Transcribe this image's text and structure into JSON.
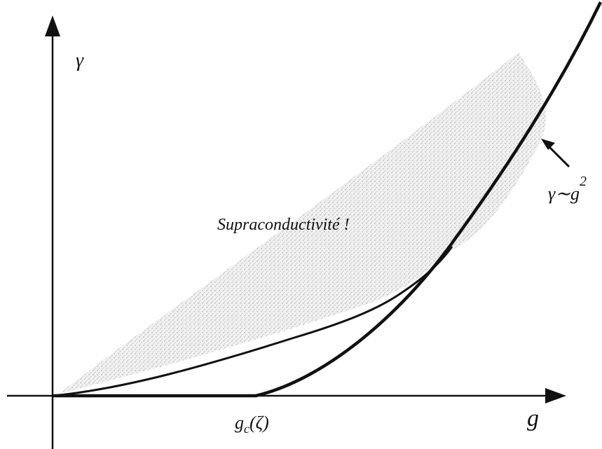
{
  "diagram": {
    "y_axis_label": "γ",
    "x_axis_label": "g",
    "region_label": "Supraconductivité !",
    "curve_label": {
      "base": "γ∼g",
      "sup": "2"
    },
    "critical_label": {
      "base": "g",
      "sub": "c",
      "rest": "(ζ)"
    }
  }
}
